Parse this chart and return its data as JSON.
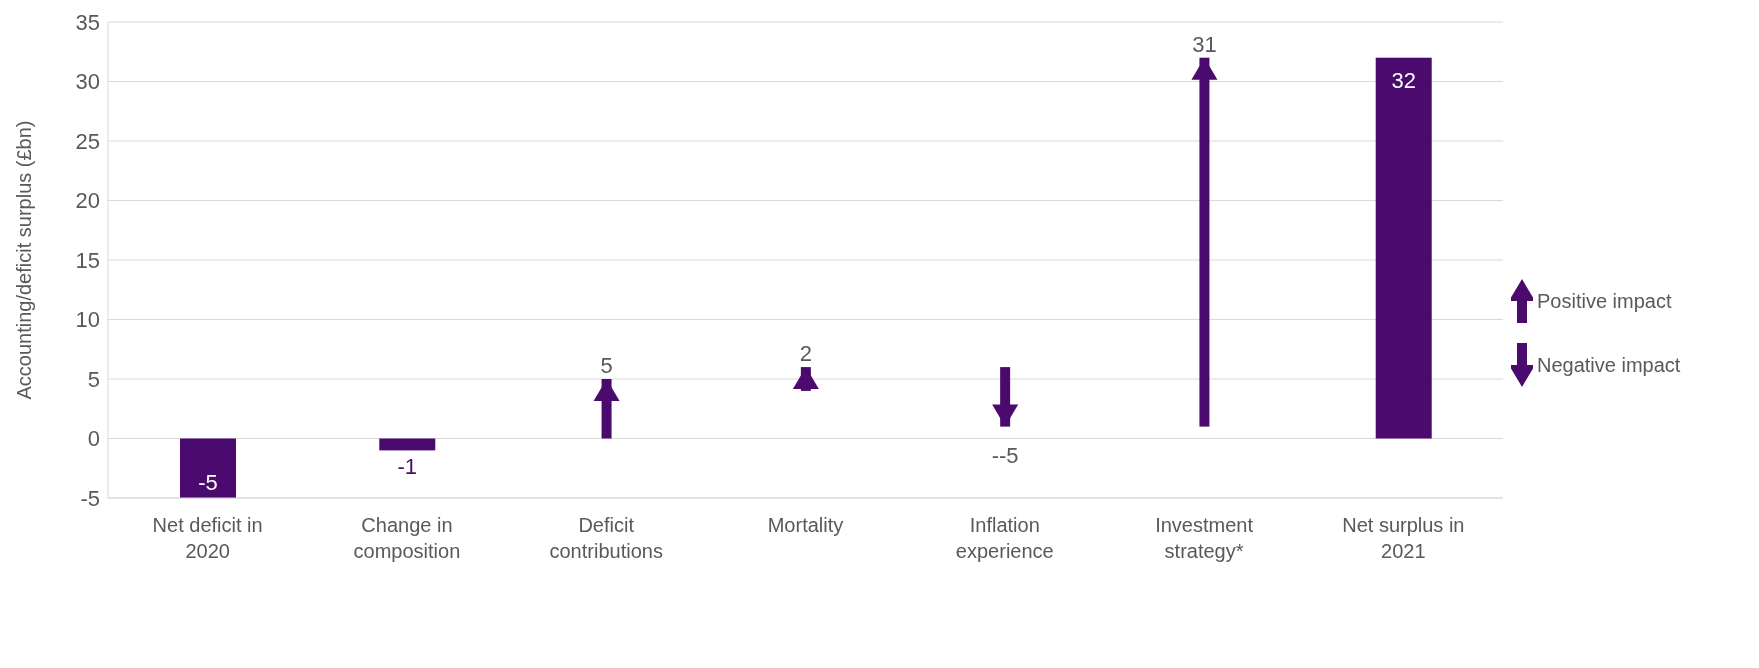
{
  "chart_data": {
    "type": "bar",
    "ylabel": "Accounting/deficit surplus (£bn)",
    "categories": [
      "Net deficit in 2020",
      "Change in composition",
      "Deficit contributions",
      "Mortality",
      "Inflation experience",
      "Investment strategy*",
      "Net surplus in 2021"
    ],
    "series": [
      {
        "color": "#4b0a6e",
        "values": [
          -5,
          -1,
          null,
          null,
          null,
          null,
          32
        ]
      },
      {
        "name": "Positive impact",
        "color": "#4b0a6e",
        "marker": "triangle",
        "values": [
          null,
          null,
          5,
          2,
          null,
          31,
          null
        ],
        "base": [
          null,
          null,
          0,
          4,
          null,
          1,
          null
        ]
      },
      {
        "name": "Negative impact",
        "color": "#4b0a6e",
        "marker": "triangle",
        "values": [
          null,
          null,
          null,
          null,
          -5,
          null,
          null
        ],
        "base": [
          null,
          null,
          null,
          null,
          6,
          null,
          null
        ]
      }
    ],
    "value_labels": [
      "-5",
      "-1",
      "5",
      "2",
      "--5",
      "31",
      "32"
    ],
    "ylim": [
      -5,
      35
    ],
    "yticks": [
      -5,
      0,
      5,
      10,
      15,
      20,
      25,
      30,
      35
    ],
    "grid": "y",
    "legend": "right"
  }
}
